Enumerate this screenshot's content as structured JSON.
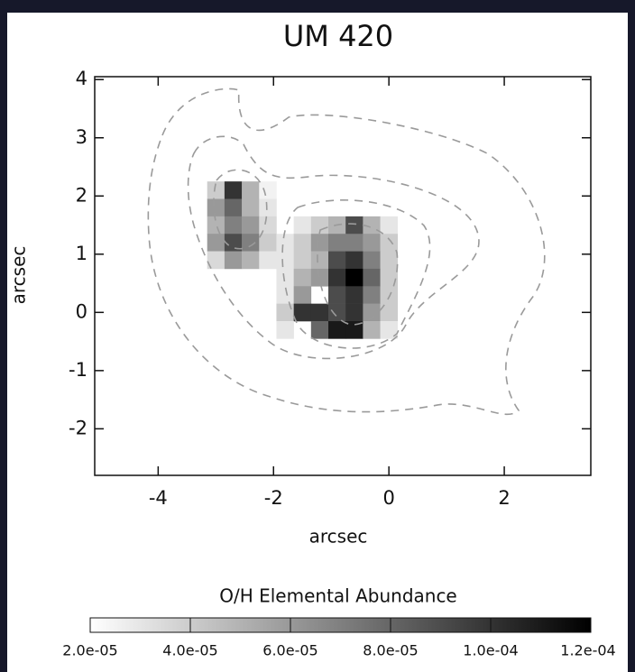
{
  "chart_data": {
    "type": "heatmap",
    "title": "UM 420",
    "x_label": "arcsec",
    "y_label": "arcsec",
    "x": [
      -3.0,
      -2.7,
      -2.4,
      -2.1,
      -1.8,
      -1.5,
      -1.2,
      -0.9,
      -0.6,
      -0.3,
      0.0
    ],
    "y": [
      2.1,
      1.8,
      1.5,
      1.2,
      0.9,
      0.6,
      0.3,
      0.0,
      -0.3
    ],
    "values": [
      [
        4e-05,
        0.0001,
        5e-05,
        2.5e-05,
        null,
        null,
        null,
        null,
        null,
        null,
        null
      ],
      [
        6e-05,
        8e-05,
        5e-05,
        3e-05,
        null,
        null,
        null,
        null,
        null,
        null,
        null
      ],
      [
        5e-05,
        7e-05,
        6e-05,
        3.5e-05,
        null,
        3e-05,
        4e-05,
        5e-05,
        9e-05,
        5e-05,
        3e-05
      ],
      [
        6e-05,
        9e-05,
        7e-05,
        4e-05,
        3e-05,
        4e-05,
        6e-05,
        7e-05,
        7e-05,
        6e-05,
        4e-05
      ],
      [
        3.5e-05,
        6e-05,
        5e-05,
        3e-05,
        3e-05,
        4e-05,
        5e-05,
        9e-05,
        0.0001,
        7e-05,
        4e-05
      ],
      [
        null,
        null,
        null,
        null,
        3e-05,
        5e-05,
        6e-05,
        0.0001,
        0.00012,
        8e-05,
        4e-05
      ],
      [
        null,
        null,
        null,
        null,
        3e-05,
        6e-05,
        null,
        9e-05,
        0.0001,
        7e-05,
        4e-05
      ],
      [
        null,
        null,
        null,
        null,
        4e-05,
        0.0001,
        0.0001,
        9e-05,
        0.0001,
        6e-05,
        4e-05
      ],
      [
        null,
        null,
        null,
        null,
        3e-05,
        null,
        8e-05,
        0.00011,
        0.00011,
        5e-05,
        3e-05
      ]
    ],
    "xlim": [
      -5.1,
      3.5
    ],
    "ylim": [
      -2.8,
      4.05
    ],
    "xticks": [
      -4,
      -2,
      0,
      2
    ],
    "yticks": [
      -2,
      -1,
      0,
      1,
      2,
      3,
      4
    ],
    "colormap": "gray_r",
    "colorbar": {
      "label": "O/H Elemental Abundance",
      "lim": [
        2e-05,
        0.00012
      ],
      "ticks": [
        {
          "value": 2e-05,
          "label": "2.0e-05"
        },
        {
          "value": 4e-05,
          "label": "4.0e-05"
        },
        {
          "value": 6e-05,
          "label": "6.0e-05"
        },
        {
          "value": 8e-05,
          "label": "8.0e-05"
        },
        {
          "value": 0.0001,
          "label": "1.0e-04"
        },
        {
          "value": 0.00012,
          "label": "1.2e-04"
        }
      ]
    }
  }
}
